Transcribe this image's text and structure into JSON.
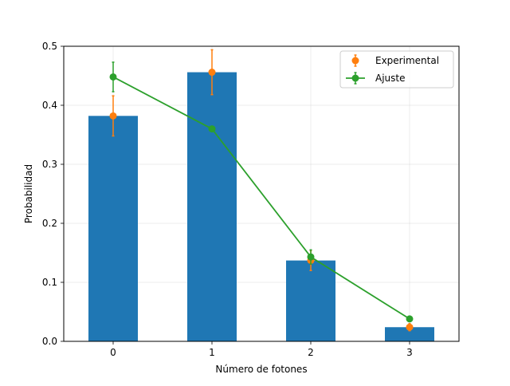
{
  "chart_data": {
    "type": "bar",
    "title": "",
    "xlabel": "Número de fotones",
    "ylabel": "Probabilidad",
    "categories": [
      "0",
      "1",
      "2",
      "3"
    ],
    "x": [
      0,
      1,
      2,
      3
    ],
    "ylim": [
      0,
      0.5
    ],
    "xlim": [
      -0.5,
      3.5
    ],
    "yticks": [
      0.0,
      0.1,
      0.2,
      0.3,
      0.4,
      0.5
    ],
    "ytick_labels": [
      "0.0",
      "0.1",
      "0.2",
      "0.3",
      "0.4",
      "0.5"
    ],
    "grid": true,
    "legend_position": "upper right",
    "bars": {
      "values": [
        0.382,
        0.456,
        0.137,
        0.024
      ],
      "color": "#1f77b4"
    },
    "series": [
      {
        "name": "Experimental",
        "style": "errorbar-markers",
        "color": "#ff7f0e",
        "values": [
          0.382,
          0.456,
          0.137,
          0.024
        ],
        "errors": [
          0.034,
          0.038,
          0.017,
          0.006
        ]
      },
      {
        "name": "Ajuste",
        "style": "errorbar-line-markers",
        "color": "#2ca02c",
        "values": [
          0.448,
          0.36,
          0.143,
          0.038
        ],
        "errors": [
          0.025,
          0.004,
          0.012,
          0.004
        ]
      }
    ]
  }
}
